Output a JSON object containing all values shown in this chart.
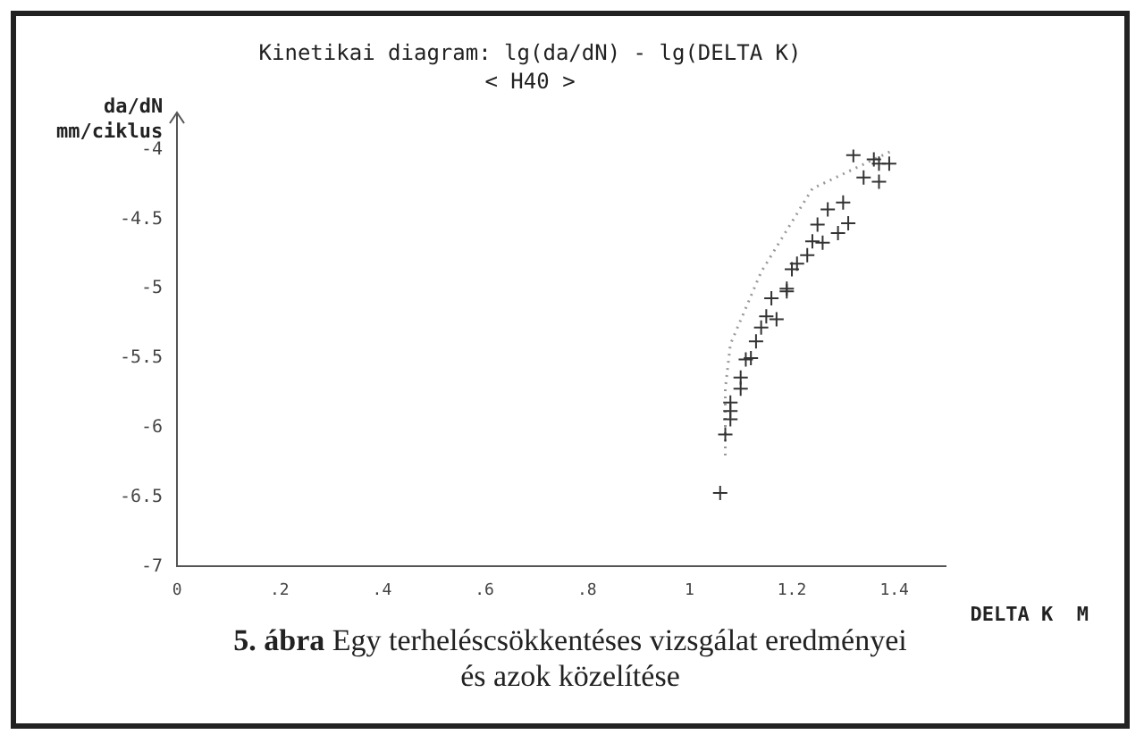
{
  "chart_data": {
    "type": "scatter",
    "title": "Kinetikai diagram: lg(da/dN) - lg(DELTA K)",
    "subtitle": "< H40 >",
    "xlabel": "DELTA K  M",
    "ylabel": "da/dN\nmm/ciklus",
    "annotations": [
      "5. ábra Egy terheléscsökkentéses vizsgálat eredményei és azok közelítése"
    ],
    "xlim": [
      0,
      1.5
    ],
    "xticks": [
      0,
      {
        "value": 0.2,
        "label": ".2"
      },
      {
        "value": 0.4,
        "label": ".4"
      },
      {
        "value": 0.6,
        "label": ".6"
      },
      {
        "value": 0.8,
        "label": ".8"
      },
      1,
      1.2,
      1.4
    ],
    "ylim": [
      -7,
      -4
    ],
    "yticks": [
      -7,
      -6.5,
      -6,
      -5.5,
      -5,
      -4.5,
      -4
    ],
    "grid": false,
    "legend": false,
    "series": [
      {
        "marker": "cross",
        "color": "#333333",
        "x": [
          1.32,
          1.36,
          1.39,
          1.37,
          1.34,
          1.37,
          1.3,
          1.27,
          1.25,
          1.31,
          1.29,
          1.24,
          1.26,
          1.23,
          1.21,
          1.2,
          1.19,
          1.16,
          1.19,
          1.15,
          1.17,
          1.14,
          1.13,
          1.12,
          1.11,
          1.1,
          1.1,
          1.08,
          1.08,
          1.08,
          1.07,
          1.06
        ],
        "values": [
          -4.04,
          -4.07,
          -4.1,
          -4.1,
          -4.2,
          -4.23,
          -4.38,
          -4.43,
          -4.54,
          -4.53,
          -4.6,
          -4.66,
          -4.67,
          -4.76,
          -4.82,
          -4.86,
          -5,
          -5.07,
          -5.02,
          -5.2,
          -5.22,
          -5.28,
          -5.38,
          -5.5,
          -5.51,
          -5.64,
          -5.72,
          -5.82,
          -5.88,
          -5.94,
          -6.05,
          -6.47
        ]
      },
      {
        "type": "line",
        "marker": "none",
        "line_style": "dotted",
        "color": "#999999",
        "x": [
          1.07,
          1.07,
          1.08,
          1.14,
          1.24,
          1.4
        ],
        "values": [
          -6.2,
          -5.72,
          -5.4,
          -4.88,
          -4.28,
          -4
        ]
      }
    ]
  }
}
